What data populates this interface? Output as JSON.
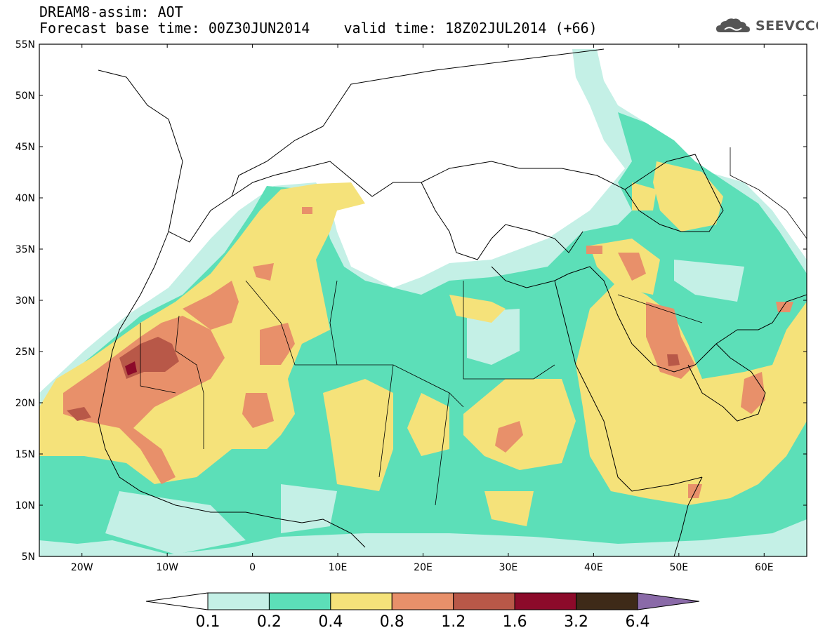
{
  "header": {
    "product": "DREAM8-assim: AOT",
    "base_time": "Forecast base time: 00Z30JUN2014",
    "valid_time": "valid time: 18Z02JUL2014 (+66)",
    "logo_text": "SEEVCCC"
  },
  "map": {
    "lat_range": [
      5,
      55
    ],
    "lon_range": [
      -25,
      65
    ],
    "lat_ticks": [
      {
        "value": 5,
        "label": "5N"
      },
      {
        "value": 10,
        "label": "10N"
      },
      {
        "value": 15,
        "label": "15N"
      },
      {
        "value": 20,
        "label": "20N"
      },
      {
        "value": 25,
        "label": "25N"
      },
      {
        "value": 30,
        "label": "30N"
      },
      {
        "value": 35,
        "label": "35N"
      },
      {
        "value": 40,
        "label": "40N"
      },
      {
        "value": 45,
        "label": "45N"
      },
      {
        "value": 50,
        "label": "50N"
      },
      {
        "value": 55,
        "label": "55N"
      }
    ],
    "lon_ticks": [
      {
        "value": -20,
        "label": "20W"
      },
      {
        "value": -10,
        "label": "10W"
      },
      {
        "value": 0,
        "label": "0"
      },
      {
        "value": 10,
        "label": "10E"
      },
      {
        "value": 20,
        "label": "20E"
      },
      {
        "value": 30,
        "label": "30E"
      },
      {
        "value": 40,
        "label": "40E"
      },
      {
        "value": 50,
        "label": "50E"
      },
      {
        "value": 60,
        "label": "60E"
      }
    ]
  },
  "colorbar": {
    "levels": [
      "0.1",
      "0.2",
      "0.4",
      "0.8",
      "1.2",
      "1.6",
      "3.2",
      "6.4"
    ],
    "colors": [
      "#ffffff",
      "#c4f0e6",
      "#5cdfb8",
      "#f5e27a",
      "#e8906a",
      "#b85848",
      "#8c0a2a",
      "#3e2a18",
      "#8a6aa8"
    ]
  },
  "colors": {
    "very_low": "#c4f0e6",
    "low": "#5cdfb8",
    "medium": "#f5e27a",
    "high": "#e8906a",
    "very_high": "#b85848",
    "extreme": "#8c0a2a"
  }
}
